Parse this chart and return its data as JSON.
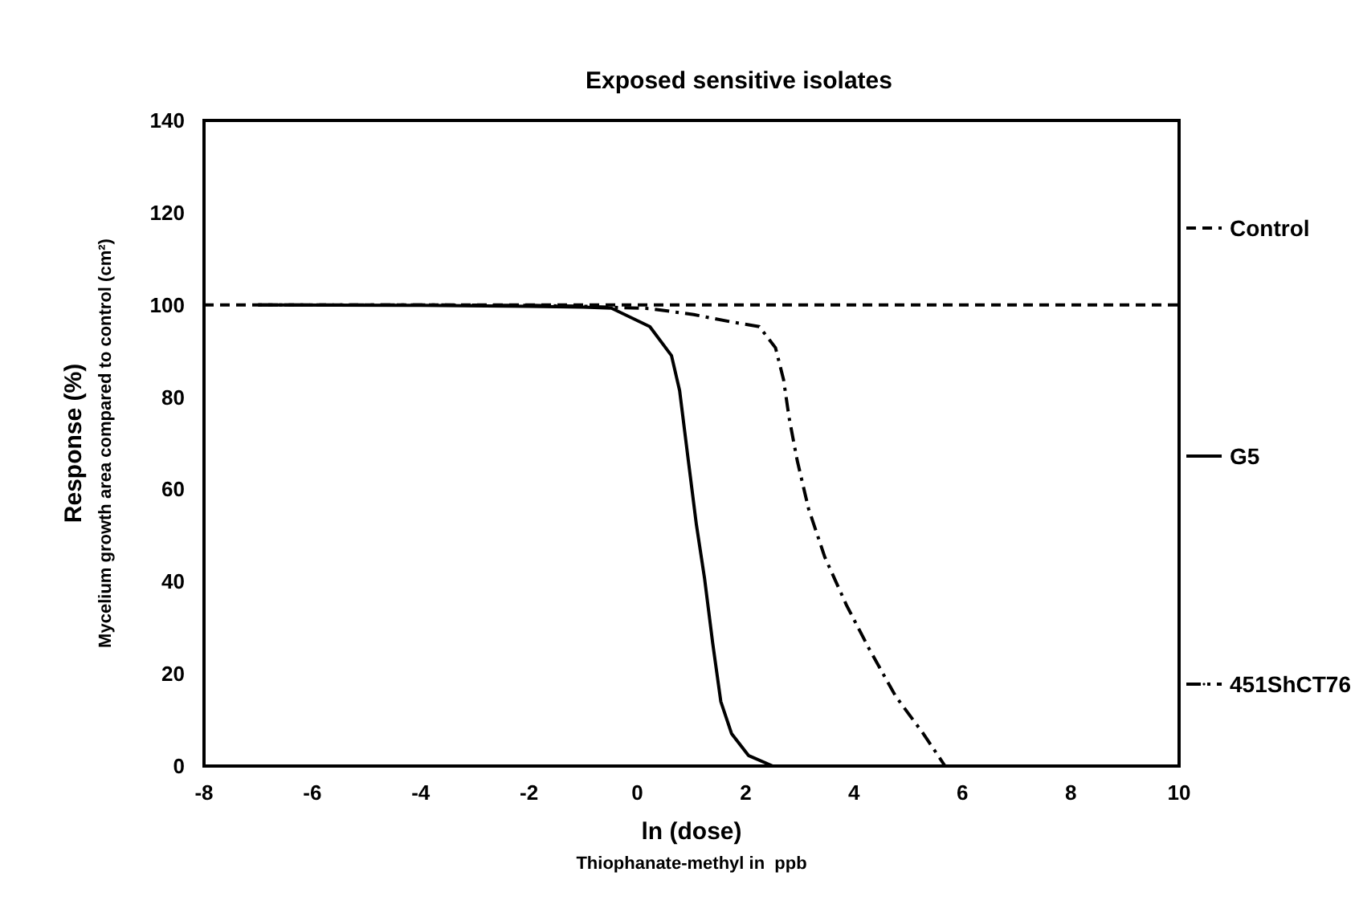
{
  "chart_data": {
    "type": "line",
    "title": "Exposed sensitive isolates",
    "xlabel": "ln (dose)\nThiophanate-methyl in  ppb",
    "ylabel": "Response (%)\nMycelium growth area compared to control (cm²)",
    "xlim": [
      -8,
      10
    ],
    "xticks": [
      -8,
      -6,
      -4,
      -2,
      0,
      2,
      4,
      6,
      8,
      10
    ],
    "ylim": [
      0,
      140
    ],
    "yticks": [
      0,
      20,
      40,
      60,
      80,
      100,
      120,
      140
    ],
    "grid": false,
    "legend": "right",
    "marker": "none",
    "series": [
      {
        "name": "Control",
        "color": "#000000",
        "line_style": "dashed",
        "x": [
          -8,
          10
        ],
        "values": [
          100,
          100
        ]
      },
      {
        "name": "G5",
        "color": "#000000",
        "line_style": "solid",
        "x": [
          -7,
          -4,
          -2,
          -1,
          -0.48,
          0.23,
          0.63,
          0.78,
          0.94,
          1.09,
          1.24,
          1.39,
          1.54,
          1.74,
          2.05,
          2.5
        ],
        "values": [
          100,
          99.9,
          99.7,
          99.5,
          99.3,
          95.3,
          89,
          81.4,
          66.3,
          52.3,
          40.7,
          26.7,
          14,
          7,
          2.3,
          0
        ]
      },
      {
        "name": "451ShCT76",
        "color": "#000000",
        "line_style": "dashdot",
        "x": [
          -7,
          -4,
          -2,
          -1,
          0.23,
          1.04,
          1.74,
          2.25,
          2.55,
          2.7,
          2.8,
          2.95,
          3.16,
          3.46,
          3.86,
          4.27,
          4.77,
          5.28,
          5.68
        ],
        "values": [
          100,
          100,
          99.9,
          99.7,
          99.2,
          97.9,
          96.3,
          95.3,
          90.7,
          83.7,
          75.6,
          66.3,
          55.8,
          45.3,
          34.9,
          25.6,
          15.1,
          7,
          0
        ]
      }
    ]
  }
}
